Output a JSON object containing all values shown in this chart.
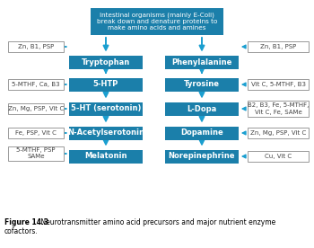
{
  "title_bold": "Figure 14.3",
  "title_rest": " Neurotransmitter amino acid precursors and major nutrient enzyme\ncofactors.",
  "top_box": "Intestinal organisms (mainly E-Coli)\nbreak down and denature proteins to\nmake amino acids and amines",
  "left_boxes": [
    "Zn, B1, PSP",
    "5-MTHF, Ca, B3",
    "Zn, Mg, PSP, Vit C",
    "Fe, PSP, Vit C",
    "5-MTHF, PSP\nSAMe"
  ],
  "right_boxes": [
    "Zn, B1, PSP",
    "Vit C, 5-MTHF, B3",
    "B2, B3, Fe, 5-MTHF,\nVit C, Fe, SAMe",
    "Zn, Mg, PSP, Vit C",
    "Cu, Vit C"
  ],
  "left_column": [
    "Tryptophan",
    "5-HTP",
    "5-HT (serotonin)",
    "N-Acetylserotonin",
    "Melatonin"
  ],
  "right_column": [
    "Phenylalanine",
    "Tyrosine",
    "L-Dopa",
    "Dopamine",
    "Norepinephrine"
  ],
  "box_color": "#1b7faa",
  "box_text_color": "white",
  "arrow_color": "#1b9fd0",
  "bg_color": "white",
  "border_color": "#999999"
}
